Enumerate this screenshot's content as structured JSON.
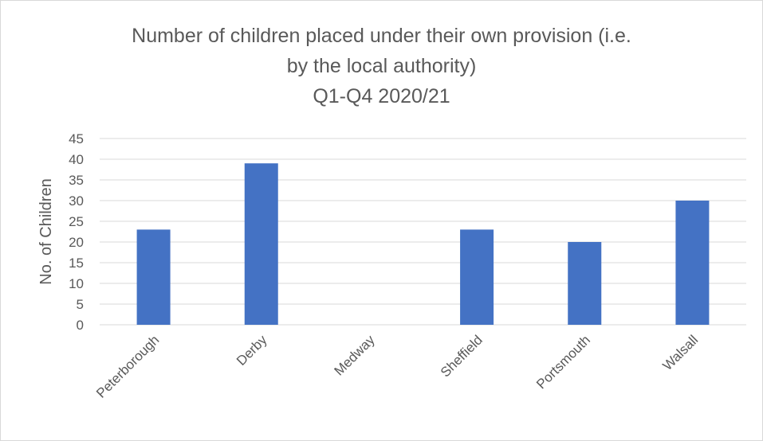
{
  "chart_data": {
    "type": "bar",
    "title_lines": [
      "Number of children placed under their own provision (i.e.",
      "by the local authority)",
      "Q1-Q4 2020/21"
    ],
    "categories": [
      "Peterborough",
      "Derby",
      "Medway",
      "Sheffield",
      "Portsmouth",
      "Walsall"
    ],
    "values": [
      23,
      39,
      0,
      23,
      20,
      30
    ],
    "xlabel": "",
    "ylabel": "No. of Children",
    "ylim": [
      0,
      45
    ],
    "yticks": [
      0,
      5,
      10,
      15,
      20,
      25,
      30,
      35,
      40,
      45
    ],
    "grid": true,
    "legend": "none",
    "bar_color": "#4472c4",
    "grid_color": "#d9d9d9"
  }
}
